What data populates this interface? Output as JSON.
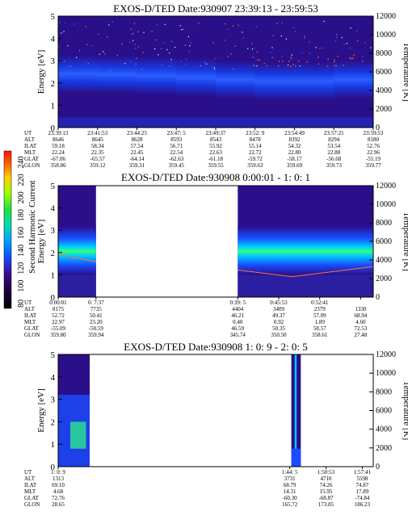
{
  "colors": {
    "background_dark": "#2a0f8a",
    "band_blue": "#1a4cff",
    "band_cyan": "#00c8ff",
    "band_green": "#30ff60",
    "band_yellow": "#ffd000",
    "band_red": "#ff2000"
  },
  "colorbar": {
    "label": "Second Harmonic Current",
    "ticks": [
      "240",
      "220",
      "200",
      "180",
      "160",
      "140",
      "120",
      "100",
      "80"
    ],
    "colors": [
      "#ff1010",
      "#ff6000",
      "#ffd000",
      "#a0ff00",
      "#20e040",
      "#00e0b0",
      "#00a0ff",
      "#1050ff",
      "#3a10a0",
      "#200040",
      "#000000"
    ]
  },
  "chart_data": [
    {
      "type": "heatmap",
      "title": "EXOS-D/TED   Date:930907  23:39:13 - 23:59:53",
      "ylabel": "Energy [eV]",
      "y2label": "Temperature [K]",
      "ylim": [
        0,
        5
      ],
      "y2lim": [
        0,
        12000
      ],
      "yticks": [
        "0",
        "1",
        "2",
        "3",
        "4",
        "5"
      ],
      "y2ticks": [
        "0",
        "2000",
        "4000",
        "6000",
        "8000",
        "10000",
        "12000"
      ],
      "data_segments": [
        [
          0,
          1
        ]
      ],
      "band_center_eV": [
        2.4,
        2.4,
        2.35,
        2.3,
        2.2,
        2.1,
        2.05,
        2.1,
        2.2
      ],
      "ephemeris": {
        "rows": [
          "UT",
          "ALT",
          "ILAT",
          "MLT",
          "GLAT",
          "GLON"
        ],
        "columns": [
          {
            "pos": 0.0,
            "values": [
              "23:39:13",
              "8646",
              "59.18",
              "22.24",
              "-67.06",
              "358.86"
            ]
          },
          {
            "pos": 0.125,
            "values": [
              "23:41:53",
              "8645",
              "58.34",
              "22.35",
              "-65.57",
              "359.12"
            ]
          },
          {
            "pos": 0.25,
            "values": [
              "23:44:25",
              "8628",
              "57.54",
              "22.45",
              "-64.14",
              "359.31"
            ]
          },
          {
            "pos": 0.375,
            "values": [
              "23:47: 5",
              "8593",
              "56.71",
              "22.54",
              "-62.63",
              "359.45"
            ]
          },
          {
            "pos": 0.5,
            "values": [
              "23:49:37",
              "8543",
              "55.92",
              "22.63",
              "-61.18",
              "359.55"
            ]
          },
          {
            "pos": 0.625,
            "values": [
              "23:52: 9",
              "8478",
              "55.14",
              "22.72",
              "-59.72",
              "359.63"
            ]
          },
          {
            "pos": 0.75,
            "values": [
              "23:54:49",
              "8392",
              "54.32",
              "22.80",
              "-58.17",
              "359.69"
            ]
          },
          {
            "pos": 0.875,
            "values": [
              "23:57:21",
              "8294",
              "53.54",
              "22.88",
              "-56.68",
              "359.73"
            ]
          },
          {
            "pos": 1.0,
            "values": [
              "23:59:53",
              "8180",
              "52.76",
              "22.96",
              "-55.19",
              "359.77"
            ]
          }
        ]
      }
    },
    {
      "type": "heatmap",
      "title": "EXOS-D/TED   Date:930908  0:00:01 - 1: 0: 1",
      "ylabel": "Energy [eV]",
      "y2label": "Temperature [K]",
      "ylim": [
        0,
        5
      ],
      "y2lim": [
        0,
        12000
      ],
      "yticks": [
        "0",
        "1",
        "2",
        "3",
        "4",
        "5"
      ],
      "y2ticks": [
        "0",
        "2000",
        "4000",
        "6000",
        "8000",
        "10000",
        "12000"
      ],
      "data_segments": [
        [
          0,
          0.12
        ],
        [
          0.57,
          1
        ]
      ],
      "ephemeris": {
        "rows": [
          "UT",
          "ALT",
          "ILAT",
          "MLT",
          "GLAT",
          "GLON"
        ],
        "columns": [
          {
            "pos": 0.0,
            "values": [
              "0:00:01",
              "8175",
              "52.72",
              "22.97",
              "-55.09",
              "359.80"
            ]
          },
          {
            "pos": 0.12,
            "values": [
              "0: 7:37",
              "7735",
              "50.41",
              "23.20",
              "-50.59",
              "359.94"
            ]
          },
          {
            "pos": 0.57,
            "values": [
              "0:39: 5",
              "4404",
              "46.21",
              "0.40",
              "46.59",
              "345.74"
            ]
          },
          {
            "pos": 0.7,
            "values": [
              "0:45:53",
              "3409",
              "49.37",
              "0.92",
              "50.35",
              "350.50"
            ]
          },
          {
            "pos": 0.83,
            "values": [
              "0:52:41",
              "2379",
              "57.09",
              "1.89",
              "58.57",
              "358.61"
            ]
          },
          {
            "pos": 0.96,
            "values": [
              "",
              "1330",
              "68.94",
              "4.60",
              "72.53",
              "27.48"
            ]
          }
        ]
      }
    },
    {
      "type": "heatmap",
      "title": "EXOS-D/TED   Date:930908  1: 0: 9 - 2: 0: 5",
      "ylabel": "Energy [eV]",
      "y2label": "Temperature [K]",
      "ylim": [
        0,
        5
      ],
      "y2lim": [
        0,
        12000
      ],
      "yticks": [
        "0",
        "1",
        "2",
        "3",
        "4",
        "5"
      ],
      "y2ticks": [
        "0",
        "2000",
        "4000",
        "6000",
        "8000",
        "10000",
        "12000"
      ],
      "data_segments": [
        [
          0,
          0.1
        ],
        [
          0.74,
          0.77
        ]
      ],
      "ephemeris": {
        "rows": [
          "UT",
          "ALT",
          "ILAT",
          "MLT",
          "GLAT",
          "GLON"
        ],
        "columns": [
          {
            "pos": 0.0,
            "values": [
              "1: 0: 9",
              "1313",
              "69.10",
              "4.68",
              "72.76",
              "28.65"
            ]
          },
          {
            "pos": 0.735,
            "values": [
              "1:44: 5",
              "3731",
              "68.79",
              "14.31",
              "-60.30",
              "165.72"
            ]
          },
          {
            "pos": 0.85,
            "values": [
              "1:50:53",
              "4710",
              "74.26",
              "15.95",
              "-68.87",
              "173.85"
            ]
          },
          {
            "pos": 0.965,
            "values": [
              "1:57:41",
              "5598",
              "74.87",
              "17.89",
              "-74.84",
              "186.23"
            ]
          }
        ]
      }
    }
  ]
}
